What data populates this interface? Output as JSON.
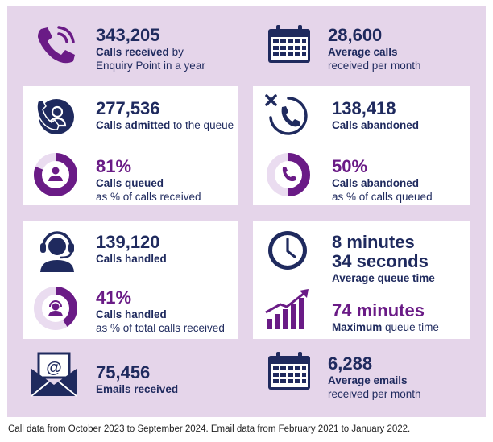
{
  "stats": {
    "calls_received": {
      "value": "343,205",
      "label_bold": "Calls received",
      "label_rest": " by",
      "label_line2": "Enquiry Point in a year"
    },
    "avg_calls_month": {
      "value": "28,600",
      "label_bold": "Average calls",
      "label_line2": "received per month"
    },
    "calls_admitted": {
      "value": "277,536",
      "label_bold": "Calls admitted",
      "label_rest": " to the queue"
    },
    "calls_queued_pct": {
      "value": "81%",
      "fraction": 0.81,
      "label_bold": "Calls queued",
      "label_line2": "as % of calls received"
    },
    "calls_abandoned": {
      "value": "138,418",
      "label_bold": "Calls abandoned"
    },
    "calls_abandoned_pct": {
      "value": "50%",
      "fraction": 0.5,
      "label_bold": "Calls abandoned",
      "label_line2": "as % of calls queued"
    },
    "calls_handled": {
      "value": "139,120",
      "label_bold": "Calls handled"
    },
    "calls_handled_pct": {
      "value": "41%",
      "fraction": 0.41,
      "label_bold": "Calls handled",
      "label_line2": "as % of total calls received"
    },
    "avg_queue_time": {
      "line1": "8 minutes",
      "line2": "34 seconds",
      "label_bold": "Average queue time"
    },
    "max_queue_time": {
      "value": "74 minutes",
      "label_bold": "Maximum",
      "label_rest": " queue time"
    },
    "emails_received": {
      "value": "75,456",
      "label_bold": "Emails received"
    },
    "avg_emails_month": {
      "value": "6,288",
      "label_bold": "Average emails",
      "label_line2": "received per month"
    }
  },
  "footer": "Call data from October 2023 to September 2024. Email data from February 2021 to January 2022.",
  "colors": {
    "navy": "#1f2a5e",
    "purple": "#6a1b86",
    "panel": "#e5d5ea",
    "ring_light": "#eadcf0"
  },
  "icons": [
    "phone-icon",
    "calendar-icon",
    "agent-phone-icon",
    "cancel-phone-icon",
    "headset-agent-icon",
    "clock-icon",
    "bar-growth-icon",
    "envelope-at-icon"
  ]
}
